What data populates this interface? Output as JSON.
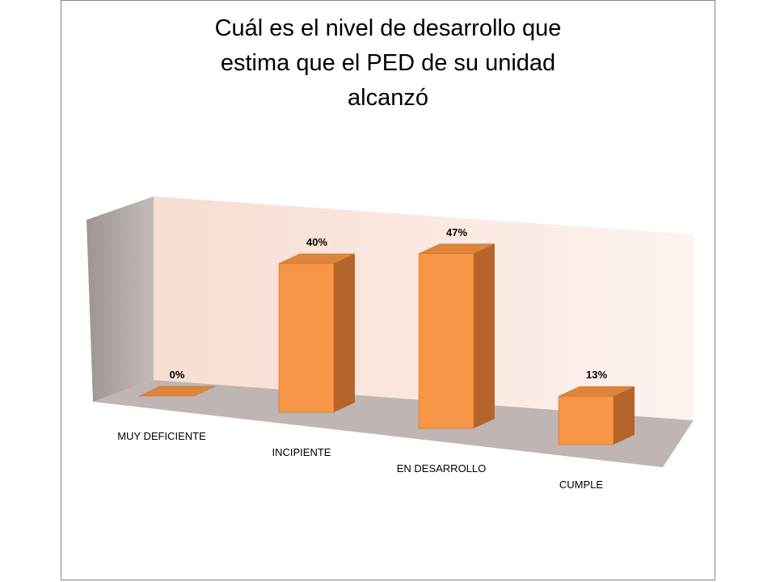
{
  "chart_data": {
    "type": "bar3d",
    "title": [
      "Cuál es el nivel de desarrollo que",
      "estima que el PED de su unidad",
      "alcanzó"
    ],
    "categories": [
      "MUY DEFICIENTE",
      "INCIPIENTE",
      "EN DESARROLLO",
      "CUMPLE"
    ],
    "values": [
      0,
      40,
      47,
      13
    ],
    "value_labels": [
      "0%",
      "40%",
      "47%",
      "13%"
    ],
    "color": "#f79646"
  }
}
